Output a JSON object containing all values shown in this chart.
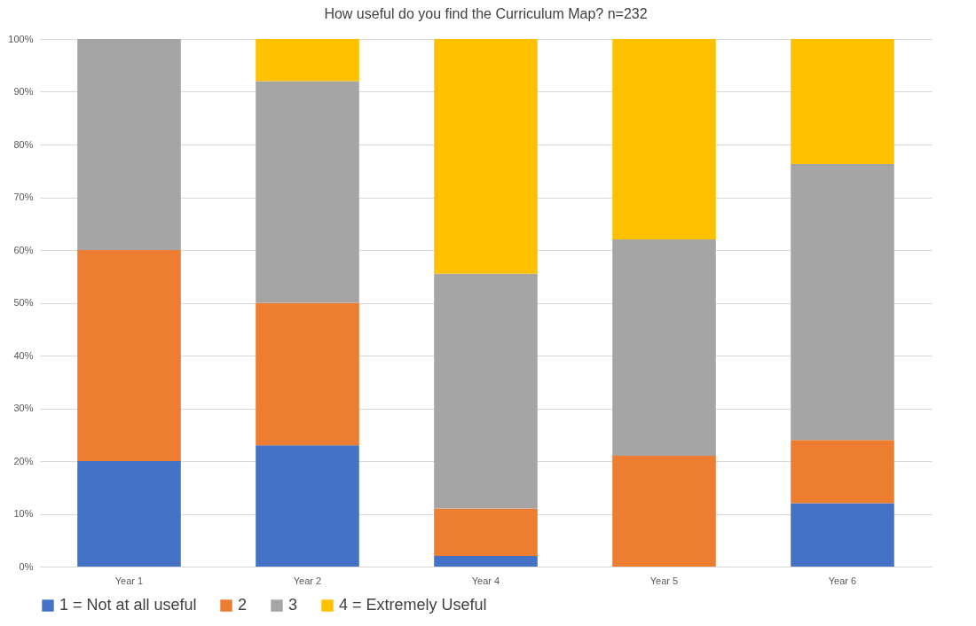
{
  "chart_data": {
    "type": "bar",
    "title": "How useful do you find the Curriculum Map? n=232",
    "stacked": true,
    "categories": [
      "Year 1",
      "Year 2",
      "Year 4",
      "Year 5",
      "Year 6"
    ],
    "series": [
      {
        "name": "1 = Not at all useful",
        "color": "#4472c4",
        "values": [
          20,
          23,
          2,
          0,
          12
        ]
      },
      {
        "name": "2",
        "color": "#ed7d31",
        "values": [
          40,
          27,
          9,
          21,
          12
        ]
      },
      {
        "name": "3",
        "color": "#a5a5a5",
        "values": [
          40,
          42,
          44.5,
          41,
          52.3
        ]
      },
      {
        "name": "4 = Extremely Useful",
        "color": "#ffc000",
        "values": [
          0,
          8,
          44.5,
          38,
          23.7
        ]
      }
    ],
    "ylim": [
      0,
      100
    ],
    "yticks": [
      {
        "value": 0,
        "label": "0%"
      },
      {
        "value": 10,
        "label": "10%"
      },
      {
        "value": 20,
        "label": "20%"
      },
      {
        "value": 30,
        "label": "30%"
      },
      {
        "value": 40,
        "label": "40%"
      },
      {
        "value": 50,
        "label": "50%"
      },
      {
        "value": 60,
        "label": "60%"
      },
      {
        "value": 70,
        "label": "70%"
      },
      {
        "value": 80,
        "label": "80%"
      },
      {
        "value": 90,
        "label": "90%"
      },
      {
        "value": 100,
        "label": "100%"
      }
    ],
    "grid": "y",
    "legend": "bottom"
  }
}
